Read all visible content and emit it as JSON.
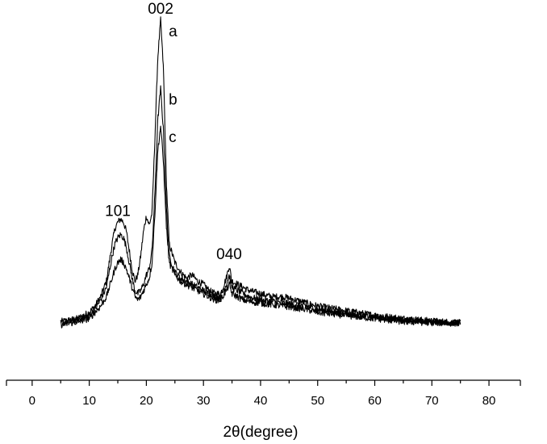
{
  "chart_data": {
    "type": "line",
    "title": "",
    "xlabel": "2θ(degree)",
    "ylabel": "",
    "xlim": [
      -4.5,
      85.5
    ],
    "xticks": [
      0,
      10,
      20,
      30,
      40,
      50,
      60,
      70,
      80
    ],
    "ylim": [
      0,
      100
    ],
    "grid": false,
    "legend": "none",
    "peak_labels": [
      {
        "text": "101",
        "x": 15
      },
      {
        "text": "002",
        "x": 22.5
      },
      {
        "text": "040",
        "x": 34.5
      }
    ],
    "series": [
      {
        "name": "a",
        "x": [
          5,
          8,
          10,
          11,
          12,
          13,
          13.5,
          14,
          14.5,
          15,
          15.5,
          16,
          16.5,
          17,
          17.5,
          18,
          18.5,
          19,
          19.5,
          20,
          20.5,
          21,
          21.5,
          22,
          22.5,
          23,
          23.5,
          24,
          25,
          26,
          27,
          28,
          29,
          30,
          31,
          32,
          33,
          34,
          34.5,
          35,
          36,
          37,
          38,
          40,
          42,
          44,
          46,
          48,
          50,
          55,
          60,
          65,
          70,
          75
        ],
        "y": [
          3,
          4,
          6,
          8,
          11,
          16,
          22,
          28,
          33,
          35,
          36,
          35,
          32,
          26,
          20,
          16,
          18,
          24,
          32,
          37,
          34,
          38,
          62,
          88,
          100,
          84,
          48,
          28,
          22,
          19,
          17,
          18,
          16,
          15,
          13,
          12,
          12,
          17,
          21,
          16,
          15,
          14,
          13,
          12,
          11,
          11,
          10,
          9,
          8,
          6.5,
          5,
          4,
          3.2,
          2.6
        ]
      },
      {
        "name": "b",
        "x": [
          5,
          8,
          10,
          11,
          12,
          13,
          13.5,
          14,
          14.5,
          15,
          15.5,
          16,
          16.5,
          17,
          17.5,
          18,
          18.5,
          19,
          19.5,
          20,
          20.5,
          21,
          21.5,
          22,
          22.5,
          23,
          23.5,
          24,
          25,
          26,
          27,
          28,
          29,
          30,
          31,
          32,
          33,
          34,
          34.5,
          35,
          36,
          37,
          38,
          40,
          42,
          44,
          46,
          48,
          50,
          55,
          60,
          65,
          70,
          75
        ],
        "y": [
          2.5,
          3.5,
          5,
          7,
          10,
          14,
          19,
          24,
          28,
          30,
          31,
          30,
          27,
          22,
          17,
          13,
          12,
          13,
          15,
          18,
          20,
          26,
          44,
          68,
          78,
          64,
          40,
          24,
          19,
          17,
          16,
          15,
          14,
          13,
          12,
          11,
          11,
          15,
          18,
          14,
          13,
          12,
          11,
          10,
          9.5,
          9,
          8.5,
          8,
          7,
          5.5,
          4.5,
          3.5,
          3,
          2.6
        ]
      },
      {
        "name": "c",
        "x": [
          5,
          8,
          10,
          11,
          12,
          13,
          13.5,
          14,
          14.5,
          15,
          15.5,
          16,
          16.5,
          17,
          17.5,
          18,
          18.5,
          19,
          19.5,
          20,
          20.5,
          21,
          21.5,
          22,
          22.5,
          23,
          23.5,
          24,
          25,
          26,
          27,
          28,
          29,
          30,
          31,
          32,
          33,
          34,
          34.5,
          35,
          36,
          37,
          38,
          40,
          42,
          44,
          46,
          48,
          50,
          55,
          60,
          65,
          70,
          75
        ],
        "y": [
          2,
          3,
          4,
          6,
          8,
          11,
          14,
          17,
          20,
          22,
          23,
          22,
          20,
          17,
          14,
          11,
          10,
          11,
          13,
          15,
          17,
          22,
          38,
          58,
          66,
          54,
          34,
          22,
          18,
          16,
          15,
          14,
          13,
          12,
          11,
          10,
          10,
          13,
          15,
          12,
          11,
          10,
          9.5,
          9,
          8.5,
          8,
          7.5,
          7,
          6,
          5,
          4,
          3,
          2.7,
          2.5
        ]
      }
    ]
  }
}
